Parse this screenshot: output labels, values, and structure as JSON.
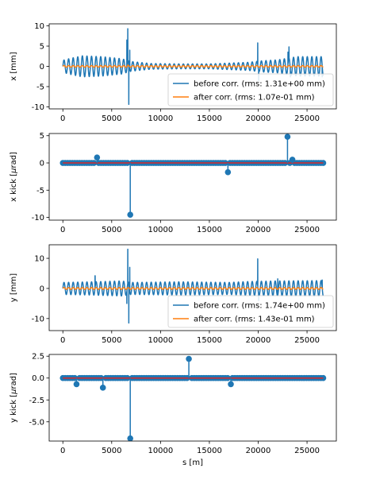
{
  "colors": {
    "before": "#1f77b4",
    "after": "#ff7f0e",
    "stem": "#1f77b4",
    "baseline": "#d62728",
    "axes": "#000000"
  },
  "chart_data": [
    {
      "type": "line",
      "ylabel": "x [mm]",
      "xlabel": "",
      "xlim": [
        -1400,
        28000
      ],
      "ylim": [
        -10.5,
        10.5
      ],
      "xticks": [
        0,
        5000,
        10000,
        15000,
        20000,
        25000
      ],
      "yticks": [
        -10,
        -5,
        0,
        5,
        10
      ],
      "legend_position": "lower-right",
      "series": [
        {
          "name": "before corr. (rms: 1.31e+00 mm)",
          "style": "oscillation",
          "x_range": [
            0,
            26658
          ],
          "envelope": [
            [
              0,
              1.5
            ],
            [
              800,
              2.0
            ],
            [
              2000,
              2.6
            ],
            [
              4000,
              2.4
            ],
            [
              6000,
              1.9
            ],
            [
              7000,
              1.2
            ],
            [
              9000,
              0.7
            ],
            [
              12000,
              0.6
            ],
            [
              15000,
              0.6
            ],
            [
              17000,
              0.8
            ],
            [
              19000,
              1.0
            ],
            [
              20500,
              1.4
            ],
            [
              22000,
              1.6
            ],
            [
              23000,
              2.0
            ],
            [
              24000,
              2.4
            ],
            [
              26658,
              2.4
            ]
          ],
          "spikes": [
            [
              6550,
              6.5
            ],
            [
              6650,
              9.3
            ],
            [
              6750,
              -9.4
            ],
            [
              6850,
              4.0
            ],
            [
              19950,
              5.8
            ],
            [
              20050,
              -3.5
            ],
            [
              23050,
              3.5
            ],
            [
              23150,
              4.8
            ],
            [
              23300,
              -2.6
            ],
            [
              26550,
              -2.6
            ]
          ]
        },
        {
          "name": "after corr. (rms: 1.07e-01 mm)",
          "style": "oscillation",
          "x_range": [
            0,
            26658
          ],
          "envelope": [
            [
              0,
              0.2
            ],
            [
              26658,
              0.2
            ]
          ],
          "spikes": [
            [
              6650,
              0.35
            ]
          ]
        }
      ]
    },
    {
      "type": "stem",
      "ylabel": "x kick [μrad]",
      "ylabel_prefix": "x kick [",
      "ylabel_unit": "μ",
      "ylabel_suffix": "rad]",
      "xlabel": "",
      "xlim": [
        -1400,
        28000
      ],
      "ylim": [
        -10.5,
        5.4
      ],
      "xticks": [
        0,
        5000,
        10000,
        15000,
        20000,
        25000
      ],
      "yticks": [
        -10,
        -5,
        0,
        5
      ],
      "x_range": [
        0,
        26658
      ],
      "n_correctors": 110,
      "kicks": [
        {
          "x": 3500,
          "y": 1.0
        },
        {
          "x": 6900,
          "y": -9.5
        },
        {
          "x": 16900,
          "y": -1.7
        },
        {
          "x": 23000,
          "y": 4.8
        },
        {
          "x": 23500,
          "y": 0.6
        }
      ]
    },
    {
      "type": "line",
      "ylabel": "y [mm]",
      "xlabel": "",
      "xlim": [
        -1400,
        28000
      ],
      "ylim": [
        -14,
        14.5
      ],
      "xticks": [
        0,
        5000,
        10000,
        15000,
        20000,
        25000
      ],
      "yticks": [
        -10,
        0,
        10
      ],
      "legend_position": "lower-right",
      "series": [
        {
          "name": "before corr. (rms: 1.74e+00 mm)",
          "style": "oscillation",
          "x_range": [
            0,
            26658
          ],
          "envelope": [
            [
              0,
              2.0
            ],
            [
              3000,
              2.2
            ],
            [
              6000,
              2.5
            ],
            [
              7000,
              2.0
            ],
            [
              12000,
              2.2
            ],
            [
              17000,
              2.0
            ],
            [
              19000,
              2.3
            ],
            [
              22000,
              2.5
            ],
            [
              26658,
              2.6
            ]
          ],
          "spikes": [
            [
              3300,
              4.2
            ],
            [
              6550,
              -5.0
            ],
            [
              6650,
              13.0
            ],
            [
              6750,
              -11.5
            ],
            [
              6850,
              7.0
            ],
            [
              19950,
              9.8
            ],
            [
              20050,
              -4.0
            ],
            [
              22000,
              3.2
            ],
            [
              26550,
              2.8
            ]
          ]
        },
        {
          "name": "after corr. (rms: 1.43e-01 mm)",
          "style": "oscillation",
          "x_range": [
            0,
            26658
          ],
          "envelope": [
            [
              0,
              0.3
            ],
            [
              26658,
              0.3
            ]
          ],
          "spikes": []
        }
      ]
    },
    {
      "type": "stem",
      "ylabel": "y kick [μrad]",
      "ylabel_prefix": "y kick [",
      "ylabel_unit": "μ",
      "ylabel_suffix": "rad]",
      "xlabel": "s [m]",
      "xlim": [
        -1400,
        28000
      ],
      "ylim": [
        -7.2,
        2.7
      ],
      "xticks": [
        0,
        5000,
        10000,
        15000,
        20000,
        25000
      ],
      "yticks": [
        -5.0,
        -2.5,
        0.0,
        2.5
      ],
      "ytick_decimals": 1,
      "x_range": [
        0,
        26658
      ],
      "n_correctors": 110,
      "kicks": [
        {
          "x": 1400,
          "y": -0.7
        },
        {
          "x": 4100,
          "y": -1.1
        },
        {
          "x": 6900,
          "y": -6.9
        },
        {
          "x": 12900,
          "y": 2.2
        },
        {
          "x": 17200,
          "y": -0.7
        }
      ]
    }
  ]
}
